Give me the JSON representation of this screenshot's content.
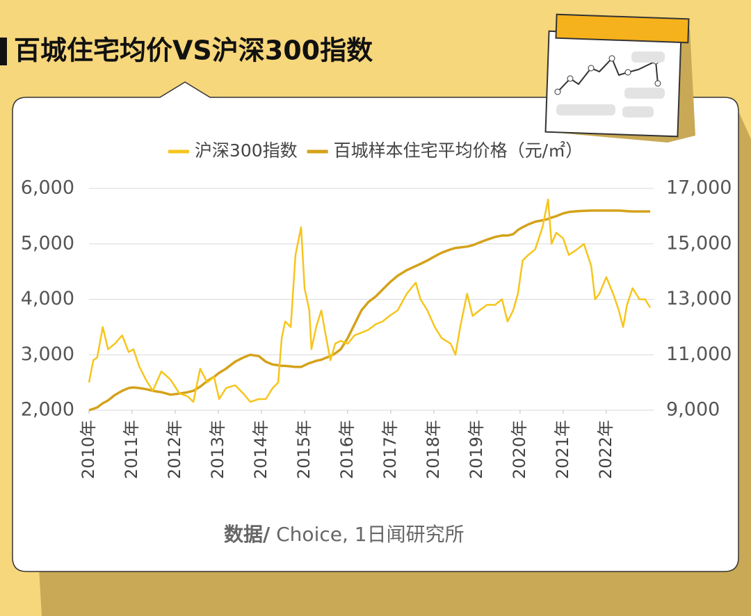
{
  "chart_data": {
    "type": "line",
    "title": "百城住宅均价VS沪深300指数",
    "source_label": "数据/",
    "source": " Choice, 1日闻研究所",
    "x": [
      2010.0,
      2010.1,
      2010.19,
      2010.32,
      2010.44,
      2010.6,
      2010.77,
      2010.92,
      2011.03,
      2011.16,
      2011.32,
      2011.48,
      2011.68,
      2011.89,
      2012.1,
      2012.29,
      2012.42,
      2012.58,
      2012.74,
      2012.9,
      2013.02,
      2013.18,
      2013.39,
      2013.58,
      2013.74,
      2013.94,
      2014.1,
      2014.26,
      2014.39,
      2014.47,
      2014.55,
      2014.68,
      2014.79,
      2014.92,
      2015.0,
      2015.11,
      2015.16,
      2015.27,
      2015.39,
      2015.48,
      2015.6,
      2015.71,
      2015.84,
      2016.0,
      2016.16,
      2016.32,
      2016.48,
      2016.65,
      2016.81,
      2016.97,
      2017.16,
      2017.37,
      2017.58,
      2017.69,
      2017.85,
      2018.02,
      2018.18,
      2018.39,
      2018.5,
      2018.61,
      2018.77,
      2018.9,
      2019.06,
      2019.23,
      2019.42,
      2019.58,
      2019.71,
      2019.84,
      2019.95,
      2020.06,
      2020.19,
      2020.35,
      2020.52,
      2020.65,
      2020.73,
      2020.84,
      2021.0,
      2021.13,
      2021.32,
      2021.48,
      2021.65,
      2021.74,
      2021.84,
      2022.0,
      2022.16,
      2022.29,
      2022.39,
      2022.48,
      2022.61,
      2022.77,
      2022.9,
      2023.02
    ],
    "series": [
      {
        "name": "沪深300指数",
        "color": "#f6c51c",
        "axis": "y",
        "values": [
          2500,
          2900,
          2950,
          3500,
          3100,
          3200,
          3350,
          3050,
          3100,
          2800,
          2550,
          2350,
          2700,
          2550,
          2300,
          2250,
          2150,
          2750,
          2500,
          2600,
          2200,
          2400,
          2450,
          2300,
          2150,
          2200,
          2200,
          2400,
          2500,
          3300,
          3600,
          3500,
          4800,
          5300,
          4200,
          3800,
          3100,
          3500,
          3800,
          3400,
          2900,
          3200,
          3250,
          3200,
          3350,
          3400,
          3450,
          3550,
          3600,
          3700,
          3800,
          4100,
          4300,
          4000,
          3800,
          3500,
          3300,
          3200,
          3000,
          3500,
          4100,
          3700,
          3800,
          3900,
          3900,
          4000,
          3600,
          3800,
          4100,
          4700,
          4800,
          4900,
          5300,
          5800,
          5000,
          5200,
          5100,
          4800,
          4900,
          5000,
          4600,
          4000,
          4100,
          4400,
          4100,
          3800,
          3500,
          3900,
          4200,
          4000,
          4000,
          3850
        ]
      },
      {
        "name": "百城样本住宅平均价格（元/㎡）",
        "color": "#d4a21a",
        "axis": "y2",
        "values": [
          9000,
          9050,
          9100,
          9250,
          9350,
          9550,
          9700,
          9800,
          9820,
          9800,
          9760,
          9700,
          9650,
          9560,
          9600,
          9650,
          9700,
          9850,
          10050,
          10200,
          10350,
          10500,
          10750,
          10900,
          11000,
          10950,
          10750,
          10650,
          10620,
          10600,
          10600,
          10580,
          10560,
          10560,
          10620,
          10700,
          10720,
          10780,
          10820,
          10880,
          10950,
          11050,
          11200,
          11600,
          12100,
          12600,
          12900,
          13100,
          13350,
          13600,
          13850,
          14050,
          14200,
          14280,
          14400,
          14550,
          14680,
          14800,
          14850,
          14870,
          14900,
          14950,
          15050,
          15150,
          15250,
          15300,
          15300,
          15350,
          15500,
          15600,
          15700,
          15800,
          15850,
          15900,
          15950,
          16000,
          16100,
          16150,
          16180,
          16190,
          16200,
          16200,
          16200,
          16200,
          16200,
          16200,
          16190,
          16180,
          16170,
          16170,
          16170,
          16170
        ]
      }
    ],
    "xlim": [
      2010,
      2023.05
    ],
    "xticks": [
      {
        "value": 2010,
        "label": "2010年"
      },
      {
        "value": 2011,
        "label": "2011年"
      },
      {
        "value": 2012,
        "label": "2012年"
      },
      {
        "value": 2013,
        "label": "2013年"
      },
      {
        "value": 2014,
        "label": "2014年"
      },
      {
        "value": 2015,
        "label": "2015年"
      },
      {
        "value": 2016,
        "label": "2016年"
      },
      {
        "value": 2017,
        "label": "2017年"
      },
      {
        "value": 2018,
        "label": "2018年"
      },
      {
        "value": 2019,
        "label": "2019年"
      },
      {
        "value": 2020,
        "label": "2020年"
      },
      {
        "value": 2021,
        "label": "2021年"
      },
      {
        "value": 2022,
        "label": "2022年"
      }
    ],
    "ylim": [
      2000,
      6000
    ],
    "yticks": [
      {
        "value": 2000,
        "label": "2,000"
      },
      {
        "value": 3000,
        "label": "3,000"
      },
      {
        "value": 4000,
        "label": "4,000"
      },
      {
        "value": 5000,
        "label": "5,000"
      },
      {
        "value": 6000,
        "label": "6,000"
      }
    ],
    "y2lim": [
      9000,
      17000
    ],
    "y2ticks": [
      {
        "value": 9000,
        "label": "9,000"
      },
      {
        "value": 11000,
        "label": "11,000"
      },
      {
        "value": 13000,
        "label": "13,000"
      },
      {
        "value": 15000,
        "label": "15,000"
      },
      {
        "value": 17000,
        "label": "17,000"
      }
    ],
    "grid": true,
    "legend": "top"
  }
}
